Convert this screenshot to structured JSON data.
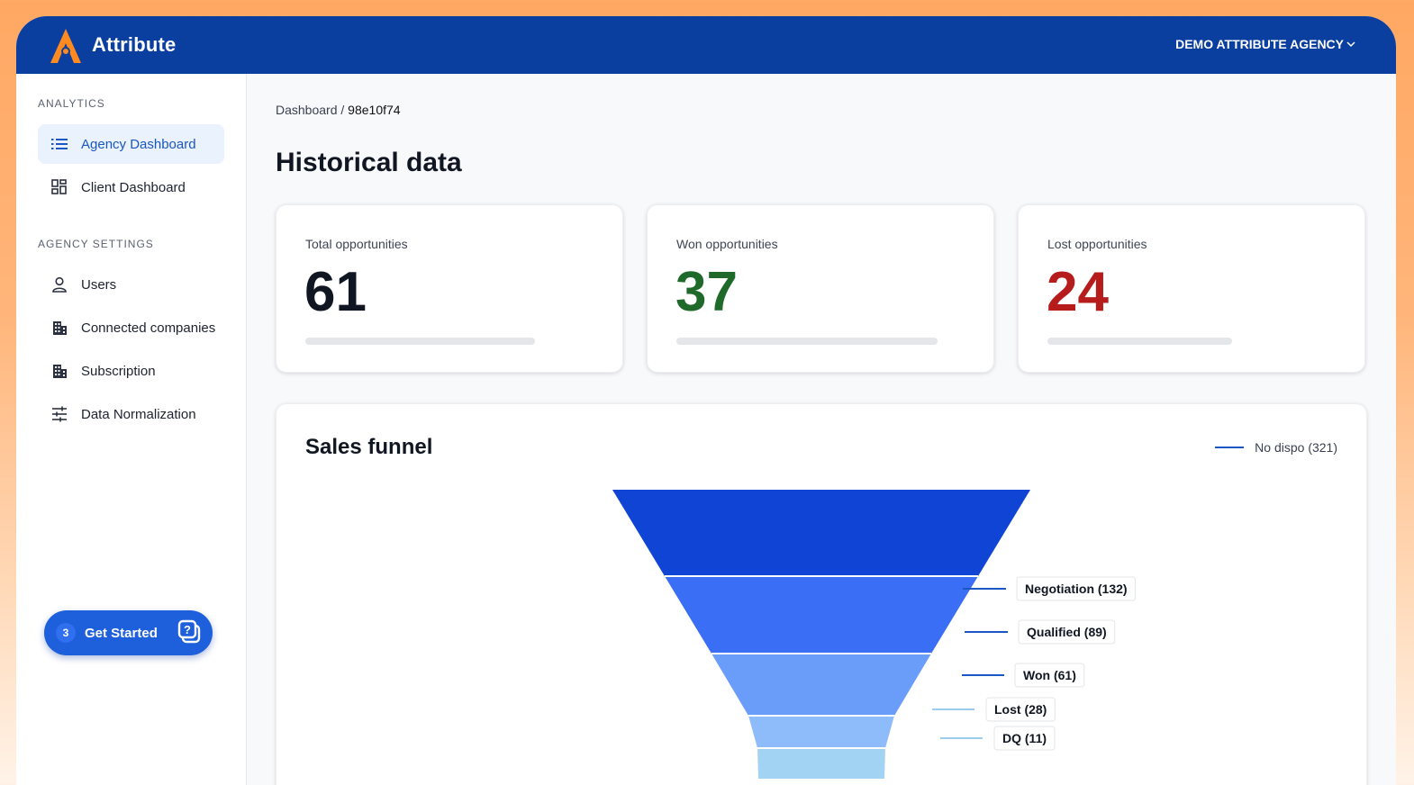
{
  "app": {
    "brand": "Attribute",
    "agency_name": "DEMO ATTRIBUTE AGENCY",
    "colors": {
      "topbar": "#0a3fa0",
      "accent": "#1a56c4",
      "won": "#1f6a2b",
      "lost": "#b71c1c"
    }
  },
  "sidebar": {
    "analytics_title": "ANALYTICS",
    "analytics_items": [
      {
        "label": "Agency Dashboard",
        "icon": "list-icon",
        "active": true
      },
      {
        "label": "Client Dashboard",
        "icon": "grid-icon",
        "active": false
      }
    ],
    "settings_title": "AGENCY SETTINGS",
    "settings_items": [
      {
        "label": "Users",
        "icon": "user-icon"
      },
      {
        "label": "Connected companies",
        "icon": "building-icon"
      },
      {
        "label": "Subscription",
        "icon": "building-icon"
      },
      {
        "label": "Data Normalization",
        "icon": "sliders-icon"
      }
    ],
    "get_started": {
      "count": "3",
      "label": "Get Started",
      "icon": "help-chat-icon"
    }
  },
  "main": {
    "breadcrumb": {
      "root": "Dashboard",
      "separator": "/",
      "current": "98e10f74"
    },
    "title": "Historical data",
    "cards": [
      {
        "label": "Total opportunities",
        "value": "61",
        "color": "#111722"
      },
      {
        "label": "Won opportunities",
        "value": "37",
        "color": "#1f6a2b"
      },
      {
        "label": "Lost opportunities",
        "value": "24",
        "color": "#b71c1c"
      }
    ]
  },
  "chart_data": {
    "type": "funnel",
    "title": "Sales funnel",
    "legend": {
      "label": "No dispo (321)",
      "position": "top-right"
    },
    "stages": [
      {
        "name": "No dispo",
        "value": 321,
        "label": "",
        "color": "#0f44d4"
      },
      {
        "name": "Negotiation",
        "value": 132,
        "label": "Negotiation (132)",
        "color": "#3a6ef5"
      },
      {
        "name": "Qualified",
        "value": 89,
        "label": "Qualified (89)",
        "color": "#6a9cf9"
      },
      {
        "name": "Won",
        "value": 61,
        "label": "Won (61)",
        "color": "#8ebcfb"
      },
      {
        "name": "Lost",
        "value": 28,
        "label": "Lost (28)",
        "color": "#a3d3f2"
      },
      {
        "name": "DQ",
        "value": 11,
        "label": "DQ (11)",
        "color": "#a3d3f2"
      }
    ]
  }
}
